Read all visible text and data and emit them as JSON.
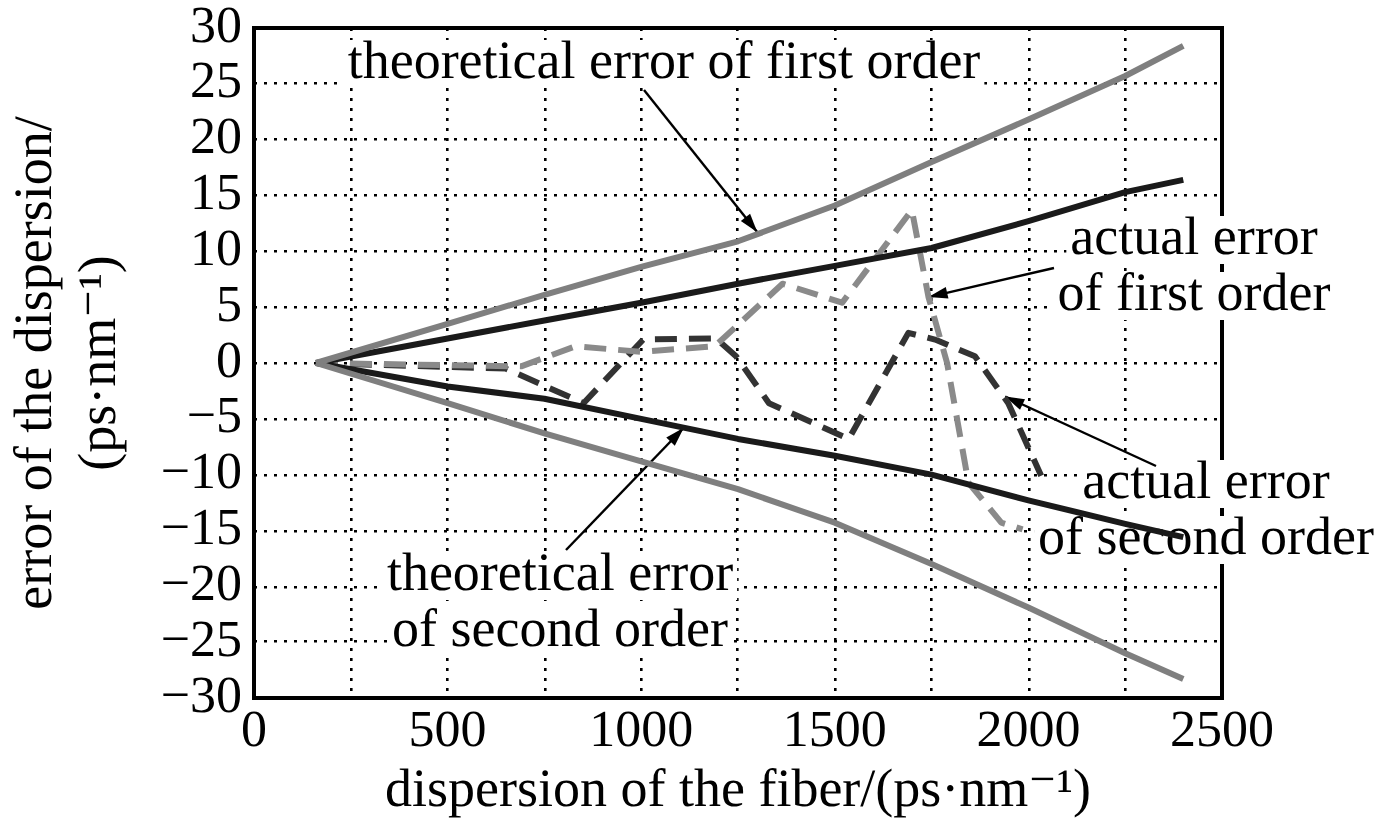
{
  "chart_data": {
    "type": "line",
    "xlabel": "dispersion of the fiber/(ps·nm⁻¹)",
    "ylabel": "error of the dispersion/\n(ps·nm⁻¹)",
    "xlim": [
      0,
      2500
    ],
    "xticks": [
      0,
      {
        "value": 250,
        "label": null
      },
      500,
      {
        "value": 750,
        "label": null
      },
      1000,
      {
        "value": 1250,
        "label": null
      },
      1500,
      {
        "value": 1750,
        "label": null
      },
      2000,
      {
        "value": 2250,
        "label": null
      },
      2500
    ],
    "ylim": [
      -30,
      30
    ],
    "yticks": [
      -30,
      -25,
      -20,
      -15,
      -10,
      -5,
      0,
      5,
      10,
      15,
      20,
      25,
      30
    ],
    "grid": true,
    "marker": "none",
    "series": [
      {
        "color": "#7f7f7f",
        "line_style": "solid",
        "x": [
          160,
          500,
          750,
          1000,
          1250,
          1500,
          1750,
          2000,
          2250,
          2400
        ],
        "values": [
          0,
          3.5,
          6.1,
          8.6,
          10.9,
          14.1,
          18.0,
          21.8,
          25.7,
          28.4
        ]
      },
      {
        "color": "#7f7f7f",
        "line_style": "solid",
        "x": [
          160,
          500,
          750,
          1000,
          1250,
          1500,
          1750,
          2000,
          2250,
          2400
        ],
        "values": [
          0,
          -3.6,
          -6.3,
          -8.8,
          -11.3,
          -14.3,
          -18.0,
          -21.9,
          -26.0,
          -28.3
        ]
      },
      {
        "color": "#1a1a1a",
        "line_style": "solid",
        "x": [
          160,
          500,
          750,
          1000,
          1250,
          1500,
          1750,
          2000,
          2250,
          2400
        ],
        "values": [
          0,
          2.2,
          3.8,
          5.4,
          7.1,
          8.7,
          10.3,
          12.7,
          15.3,
          16.4
        ]
      },
      {
        "color": "#1a1a1a",
        "line_style": "solid",
        "x": [
          160,
          500,
          750,
          1000,
          1250,
          1500,
          1750,
          2000,
          2250,
          2400
        ],
        "values": [
          0,
          -2.1,
          -3.2,
          -5.0,
          -6.8,
          -8.3,
          -10.0,
          -12.3,
          -14.4,
          -15.6
        ]
      },
      {
        "color": "#8a8a8a",
        "line_style": "dashed",
        "x": [
          160,
          690,
          830,
          1000,
          1190,
          1365,
          1519,
          1699,
          1742,
          1790,
          1845,
          1930,
          1985
        ],
        "values": [
          0,
          -0.3,
          1.5,
          1.0,
          1.5,
          7.1,
          5.4,
          13.7,
          5.9,
          0,
          -10.7,
          -14.3,
          -14.9
        ]
      },
      {
        "color": "#333333",
        "line_style": "dashed",
        "x": [
          160,
          650,
          851,
          1005,
          1193,
          1245,
          1330,
          1536,
          1690,
          1759,
          1862,
          1948,
          2033
        ],
        "values": [
          0,
          -0.5,
          -3.6,
          2.1,
          2.2,
          0.6,
          -3.6,
          -6.8,
          2.7,
          2.1,
          0.6,
          -3.6,
          -10.1
        ]
      }
    ],
    "annotations": [
      {
        "text": "theoretical error of first order",
        "x": 1300,
        "y": 11.7
      },
      {
        "text": "actual error\nof first order",
        "x": 1742,
        "y": 5.9
      },
      {
        "text": "actual error\nof second order",
        "x": 1940,
        "y": -3
      },
      {
        "text": "theoretical error\nof second order",
        "x": 1110,
        "y": -5.8
      }
    ]
  }
}
